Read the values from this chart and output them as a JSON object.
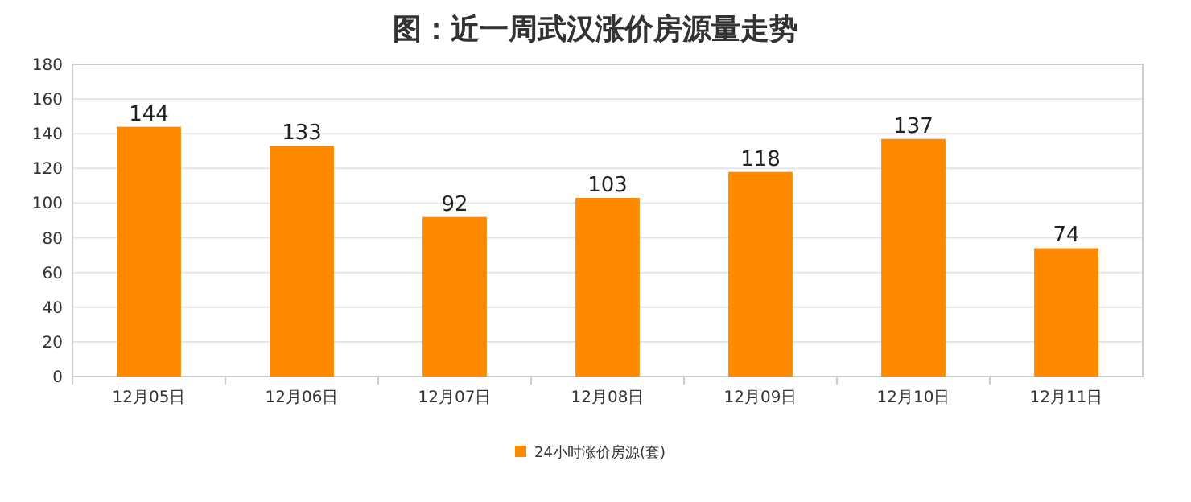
{
  "chart_data": {
    "type": "bar",
    "title": "图：近一周武汉涨价房源量走势",
    "categories": [
      "12月05日",
      "12月06日",
      "12月07日",
      "12月08日",
      "12月09日",
      "12月10日",
      "12月11日"
    ],
    "series": [
      {
        "name": "24小时涨价房源(套)",
        "color": "#ff8a00",
        "values": [
          144,
          133,
          92,
          103,
          118,
          137,
          74
        ]
      }
    ],
    "ylim": [
      0,
      180
    ],
    "yticks": [
      0,
      20,
      40,
      60,
      80,
      100,
      120,
      140,
      160,
      180
    ],
    "grid": "y",
    "legend": "bottom",
    "data_labels": true
  }
}
